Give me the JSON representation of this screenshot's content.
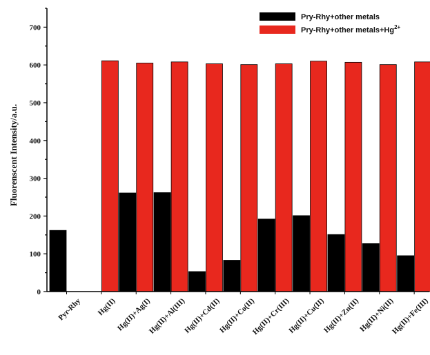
{
  "chart_data": {
    "type": "bar",
    "title": "",
    "xlabel": "",
    "ylabel": "Fluorenscent Intensity/a.u.",
    "ylim": [
      0,
      750
    ],
    "yticks": [
      0,
      100,
      200,
      300,
      400,
      500,
      600,
      700
    ],
    "grid": false,
    "legend_position": "top-right",
    "categories": [
      "Pyr-Rhy",
      "Hg(II)",
      "Hg(II)+Ag(I)",
      "Hg(II)+Al(III)",
      "Hg(II)+Cd(II)",
      "Hg(II)+Co(II)",
      "Hg(II)+Cr(III)",
      "Hg(II)+Cu(II)",
      "Hg(II)+Zn(II)",
      "Hg(II)+Ni(II)",
      "Hg(II)+Fe(III)"
    ],
    "series": [
      {
        "name": "Pry-Rhy+other metals",
        "color": "#000000",
        "values": [
          162,
          null,
          261,
          262,
          53,
          83,
          192,
          201,
          151,
          127,
          95
        ]
      },
      {
        "name": "Pry-Rhy+other metals+Hg",
        "name_superscript": "2+",
        "color": "#e8281e",
        "values": [
          null,
          611,
          605,
          608,
          603,
          601,
          603,
          610,
          607,
          601,
          608
        ]
      }
    ]
  }
}
